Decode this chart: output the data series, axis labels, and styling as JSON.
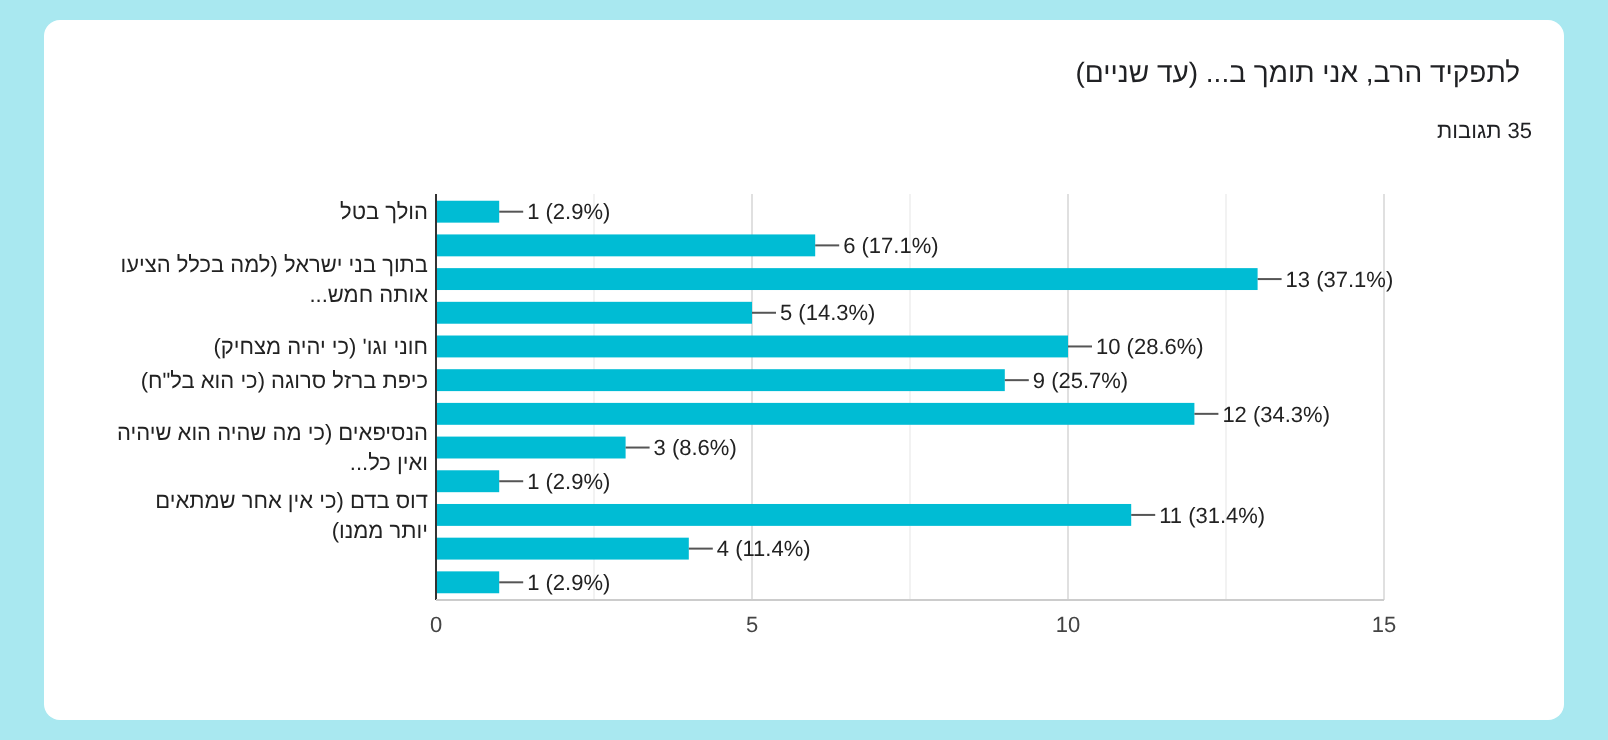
{
  "chart_data": {
    "type": "bar",
    "orientation": "horizontal",
    "title": "לתפקיד הרב, אני תומך ב... (עד שניים)",
    "subtitle": "35 תגובות",
    "categories": [
      "הולך בטל",
      null,
      "בתוך בני ישראל (למה בכלל הציעו אותה חמש...",
      null,
      "חוני וגו' (כי יהיה מצחיק)",
      "כיפת ברזל סרוגה (כי הוא בל\"ח)",
      null,
      "הנסיפאים (כי מה שהיה הוא שיהיה ואין כל...",
      null,
      "דוס בדם (כי אין אחר שמתאים יותר ממנו)",
      null,
      null
    ],
    "values": [
      1,
      6,
      13,
      5,
      10,
      9,
      12,
      3,
      1,
      11,
      4,
      1
    ],
    "value_labels": [
      "1 (2.9%)",
      "6 (17.1%)",
      "13 (37.1%)",
      "5 (14.3%)",
      "10 (28.6%)",
      "9 (25.7%)",
      "12 (34.3%)",
      "3 (8.6%)",
      "1 (2.9%)",
      "11 (31.4%)",
      "4 (11.4%)",
      "1 (2.9%)"
    ],
    "color": "#00bcd4",
    "xlim": [
      0,
      15
    ],
    "xticks": [
      0,
      {
        "value": 2.5,
        "label": null
      },
      5,
      {
        "value": 7.5,
        "label": null
      },
      10,
      {
        "value": 12.5,
        "label": null
      },
      15
    ],
    "grid": "x"
  }
}
